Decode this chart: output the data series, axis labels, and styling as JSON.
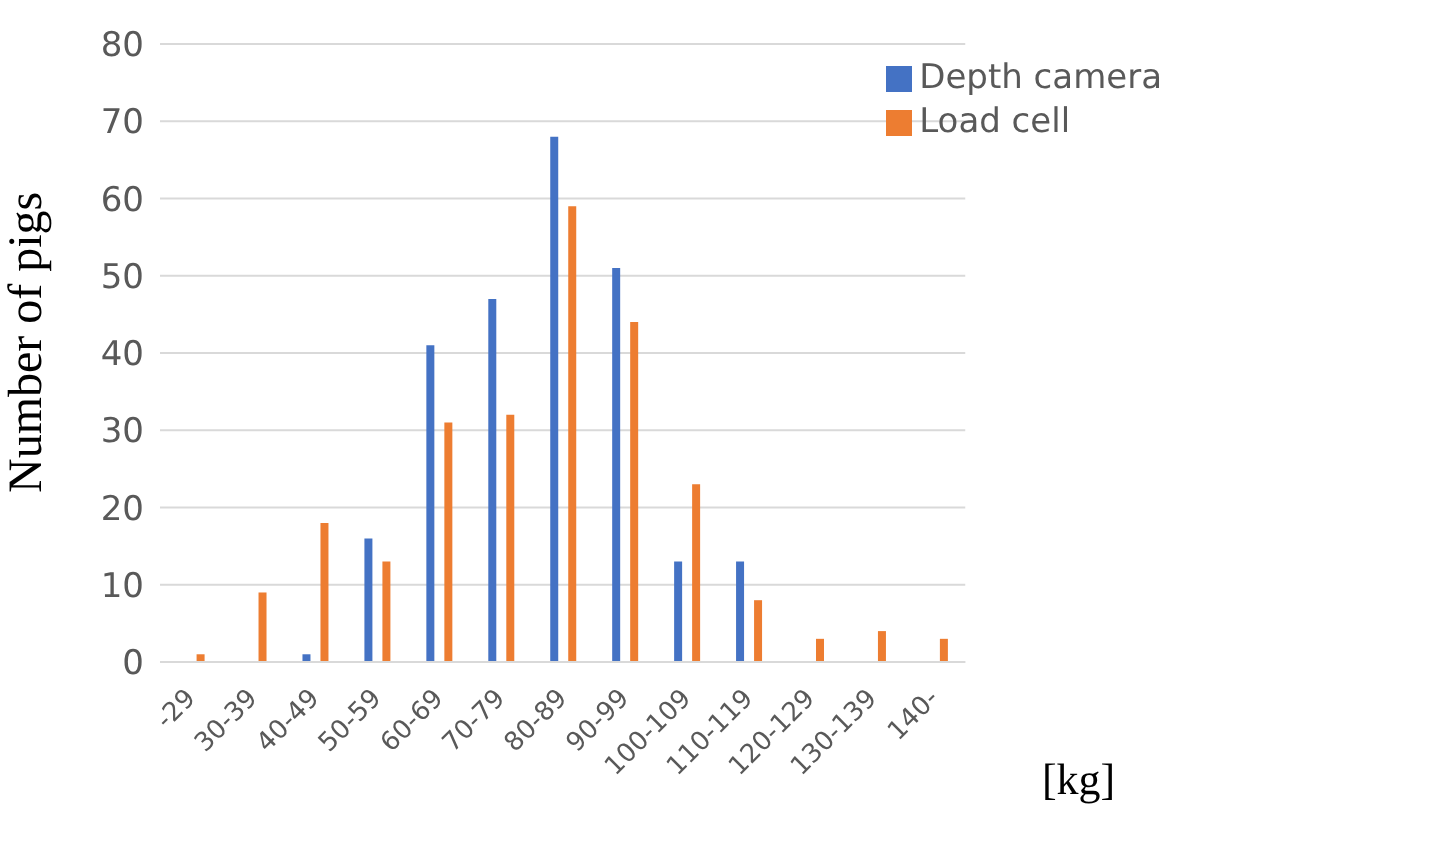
{
  "chart_data": {
    "type": "bar",
    "xlabel": "[kg]",
    "ylabel": "Number of pigs",
    "categories": [
      "-29",
      "30-39",
      "40-49",
      "50-59",
      "60-69",
      "70-79",
      "80-89",
      "90-99",
      "100-109",
      "110-119",
      "120-129",
      "130-139",
      "140-"
    ],
    "series": [
      {
        "name": "Depth camera",
        "color": "#4472c4",
        "values": [
          0,
          0,
          1,
          16,
          41,
          47,
          68,
          51,
          13,
          13,
          0,
          0,
          0
        ]
      },
      {
        "name": "Load cell",
        "color": "#ed7d31",
        "values": [
          1,
          9,
          18,
          13,
          31,
          32,
          59,
          44,
          23,
          8,
          3,
          4,
          3
        ]
      }
    ],
    "ylim": [
      0,
      80
    ],
    "yticks": [
      0,
      10,
      20,
      30,
      40,
      50,
      60,
      70,
      80
    ],
    "grid": "y",
    "legend": "top right"
  }
}
